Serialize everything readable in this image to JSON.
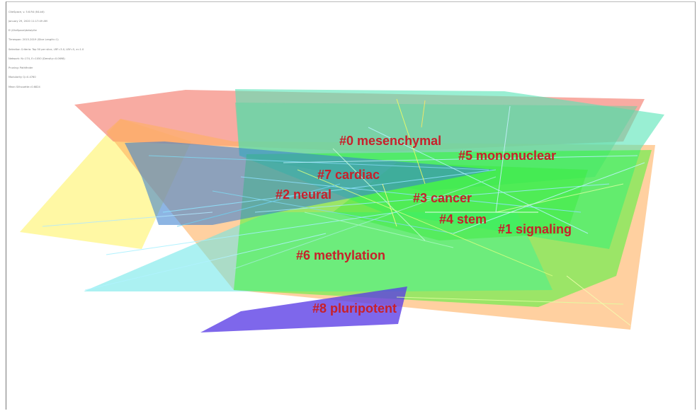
{
  "info_lines": [
    "CiteSpace, v. 5.6.R4 (64-bit)",
    "January 29, 2020 11:17:49 AM",
    "E:\\CiteSpace\\data\\cite",
    "Timespan: 2015-2019 (Slice Length=1)",
    "Selection Criteria: Top 50 per slice, LRF=3.0, LBY=5, e=1.0",
    "Network: N=174, E=1050 (Density=0.0698)",
    "Pruning: Pathfinder",
    "Modularity Q=0.4760",
    "Mean Silhouette=0.6824"
  ],
  "clusters": [
    {
      "id": 0,
      "label": "#0 mesenchymal",
      "color": "#5dd6a0"
    },
    {
      "id": 1,
      "label": "#1 signaling",
      "color": "#f58a7e"
    },
    {
      "id": 2,
      "label": "#2 neural",
      "color": "#ffb060"
    },
    {
      "id": 3,
      "label": "#3 cancer",
      "color": "#33ee33"
    },
    {
      "id": 4,
      "label": "#4 stem",
      "color": "#22ff22"
    },
    {
      "id": 5,
      "label": "#5 mononuclear",
      "color": "#55e5b5"
    },
    {
      "id": 6,
      "label": "#6 methylation",
      "color": "#66e5e8"
    },
    {
      "id": 7,
      "label": "#7 cardiac",
      "color": "#3a7fcf"
    },
    {
      "id": 8,
      "label": "#8 pluripotent",
      "color": "#5a3ce6"
    },
    {
      "id": 9,
      "label": "",
      "color": "#fff35a"
    }
  ]
}
